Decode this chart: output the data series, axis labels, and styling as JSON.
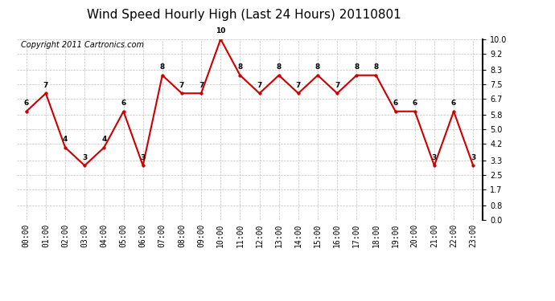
{
  "title": "Wind Speed Hourly High (Last 24 Hours) 20110801",
  "copyright": "Copyright 2011 Cartronics.com",
  "hours": [
    "00:00",
    "01:00",
    "02:00",
    "03:00",
    "04:00",
    "05:00",
    "06:00",
    "07:00",
    "08:00",
    "09:00",
    "10:00",
    "11:00",
    "12:00",
    "13:00",
    "14:00",
    "15:00",
    "16:00",
    "17:00",
    "18:00",
    "19:00",
    "20:00",
    "21:00",
    "22:00",
    "23:00"
  ],
  "values": [
    6,
    7,
    4,
    3,
    4,
    6,
    3,
    8,
    7,
    7,
    10,
    8,
    7,
    8,
    7,
    8,
    7,
    8,
    8,
    6,
    6,
    3,
    6,
    3
  ],
  "ylim": [
    0.0,
    10.0
  ],
  "yticks": [
    0.0,
    0.8,
    1.7,
    2.5,
    3.3,
    4.2,
    5.0,
    5.8,
    6.7,
    7.5,
    8.3,
    9.2,
    10.0
  ],
  "line_color": "#cc0000",
  "marker_color": "#cc0000",
  "bg_color": "#ffffff",
  "grid_color": "#c0c0c0",
  "title_fontsize": 11,
  "copyright_fontsize": 7,
  "tick_fontsize": 7,
  "annotation_fontsize": 6.5
}
